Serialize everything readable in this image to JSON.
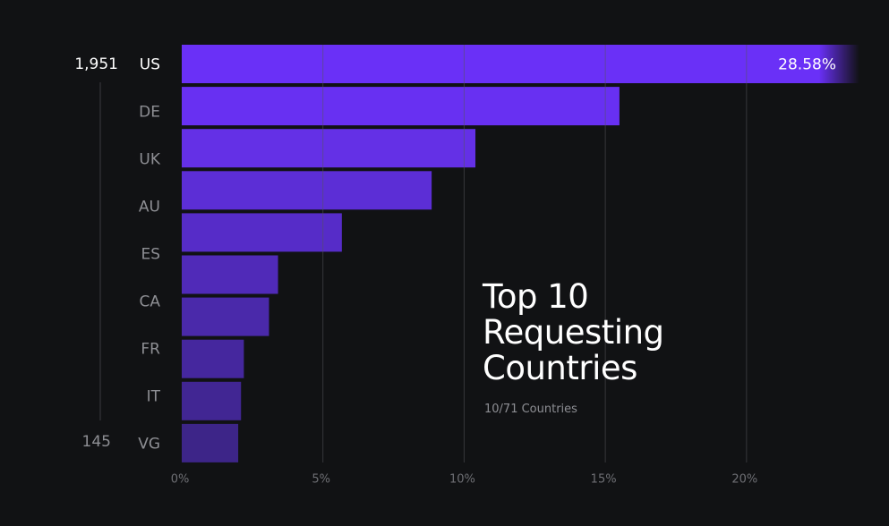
{
  "chart_data": {
    "type": "hbar",
    "title": "Top 10 Requesting Countries",
    "subtitle": "10/71 Countries",
    "annotations": [
      "1,951",
      "145"
    ],
    "categories": [
      "US",
      "DE",
      "UK",
      "AU",
      "ES",
      "CA",
      "FR",
      "IT",
      null,
      "VG"
    ],
    "values": [
      28.58,
      15.5,
      10.4,
      8.85,
      5.67,
      3.41,
      3.09,
      2.2,
      2.1,
      2.0
    ],
    "value_labels": [
      "28.58%",
      null,
      null,
      null,
      null,
      null,
      null,
      null,
      null,
      null
    ],
    "colors": [
      "#6a30f7",
      "#6830f2",
      "#6430e6",
      "#5c2ed6",
      "#562cc8",
      "#502ab8",
      "#4a29aa",
      "#45279e",
      "#412693",
      "#3d2588"
    ],
    "xlim": [
      0,
      24
    ],
    "xticks": [
      {
        "value": 0,
        "label": "0%"
      },
      {
        "value": 5,
        "label": "5%"
      },
      {
        "value": 10,
        "label": "10%"
      },
      {
        "value": 15,
        "label": "15%"
      },
      {
        "value": 20,
        "label": "20%"
      }
    ],
    "grid": true
  }
}
